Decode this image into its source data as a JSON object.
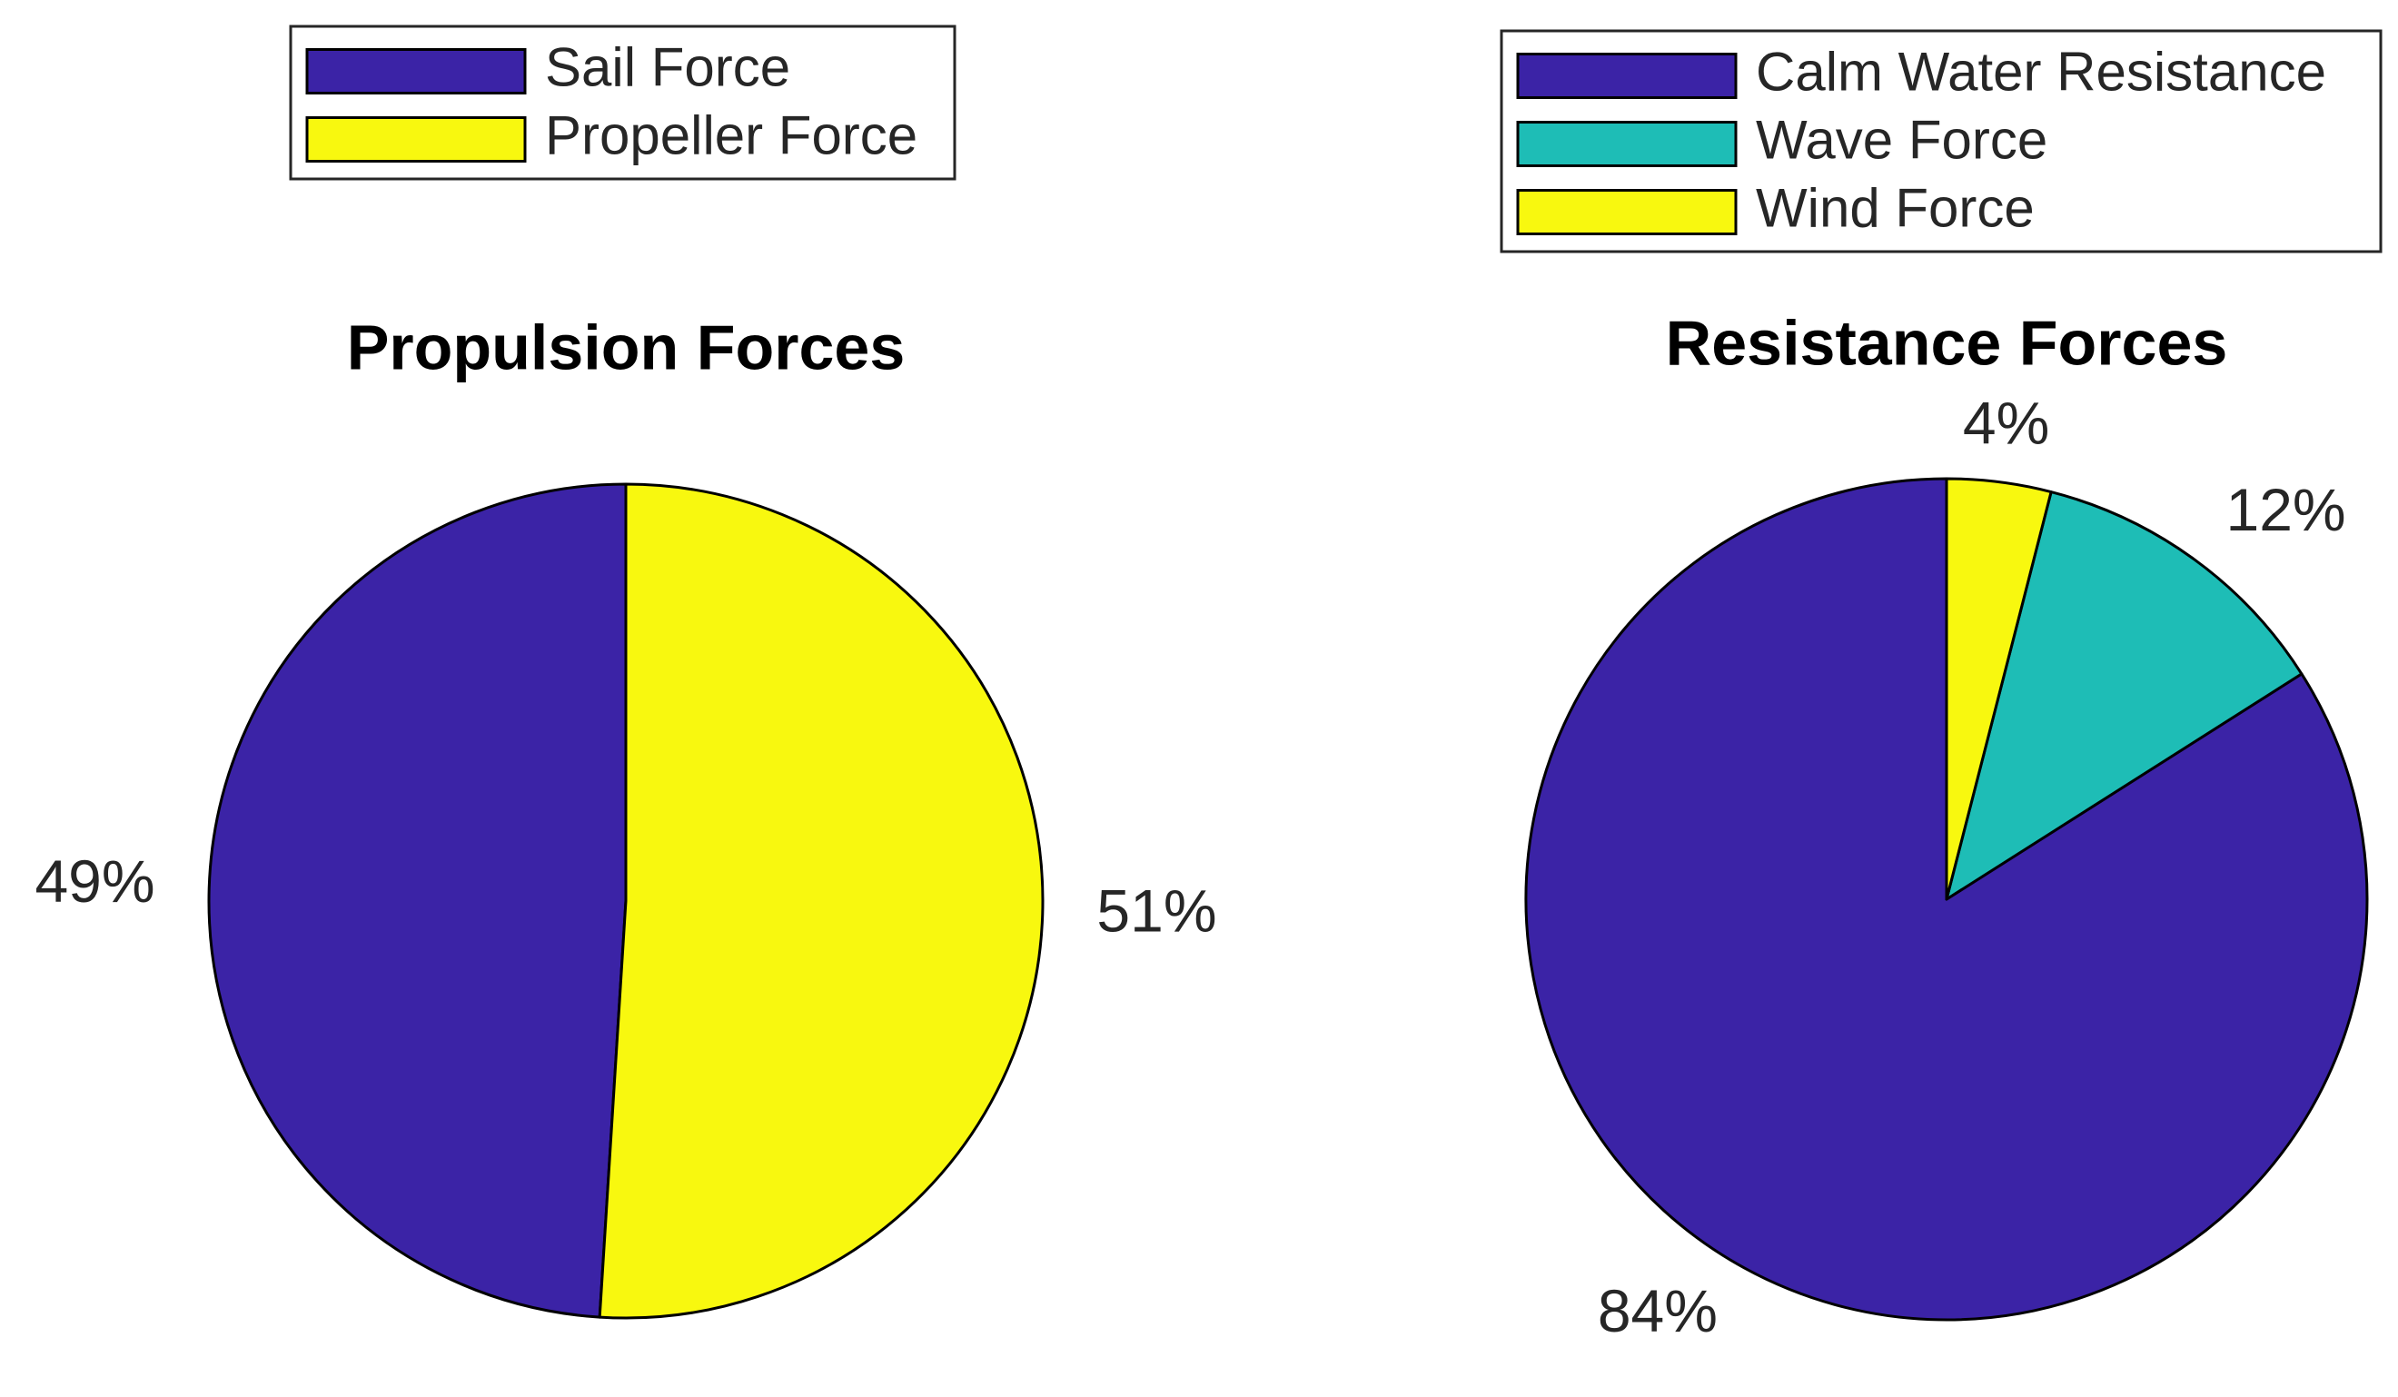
{
  "chart_data": [
    {
      "type": "pie",
      "title": "Propulsion Forces",
      "categories": [
        "Sail Force",
        "Propeller Force"
      ],
      "values": [
        49,
        51
      ],
      "value_labels": [
        "49%",
        "51%"
      ],
      "colors": [
        "#3b23a6",
        "#f8f80f"
      ]
    },
    {
      "type": "pie",
      "title": "Resistance Forces",
      "categories": [
        "Calm Water Resistance",
        "Wave Force",
        "Wind Force"
      ],
      "values": [
        84,
        12,
        4
      ],
      "value_labels": [
        "84%",
        "12%",
        "4%"
      ],
      "colors": [
        "#3b23a6",
        "#1ebdb6",
        "#f8f80f"
      ]
    }
  ]
}
